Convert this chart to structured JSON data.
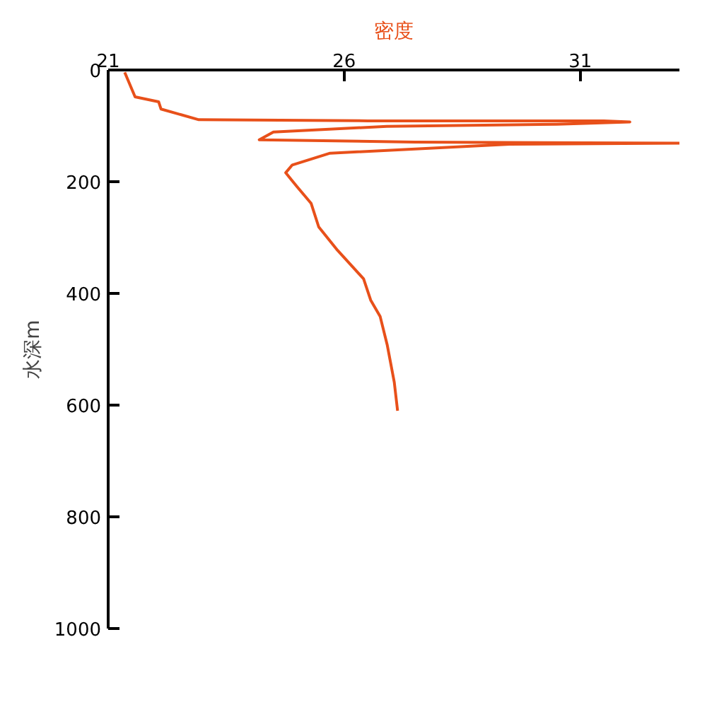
{
  "chart_data": {
    "type": "line",
    "xlabel": "密度",
    "ylabel": "水深m",
    "xlim": [
      21,
      33.1
    ],
    "xticks": [
      21,
      26,
      31
    ],
    "ylim": [
      1000,
      0
    ],
    "yticks": [
      0,
      200,
      400,
      600,
      800,
      1000
    ],
    "grid": false,
    "series": [
      {
        "color": "#e8501a",
        "x": [
          21.35,
          21.57,
          22.07,
          22.12,
          22.92,
          26.5,
          31.5,
          32.05,
          30.5,
          26.9,
          24.5,
          24.2,
          27.5,
          33.1,
          29.5,
          25.7,
          24.9,
          24.76,
          25.0,
          25.3,
          25.46,
          25.86,
          26.41,
          26.56,
          26.76,
          26.91,
          27.06,
          27.13
        ],
        "values": [
          4,
          48,
          57,
          70,
          89,
          91,
          91,
          93,
          97,
          101,
          111,
          125,
          129,
          131,
          133,
          149,
          170,
          184,
          209,
          239,
          281,
          323,
          374,
          412,
          441,
          492,
          559,
          610
        ]
      }
    ]
  }
}
